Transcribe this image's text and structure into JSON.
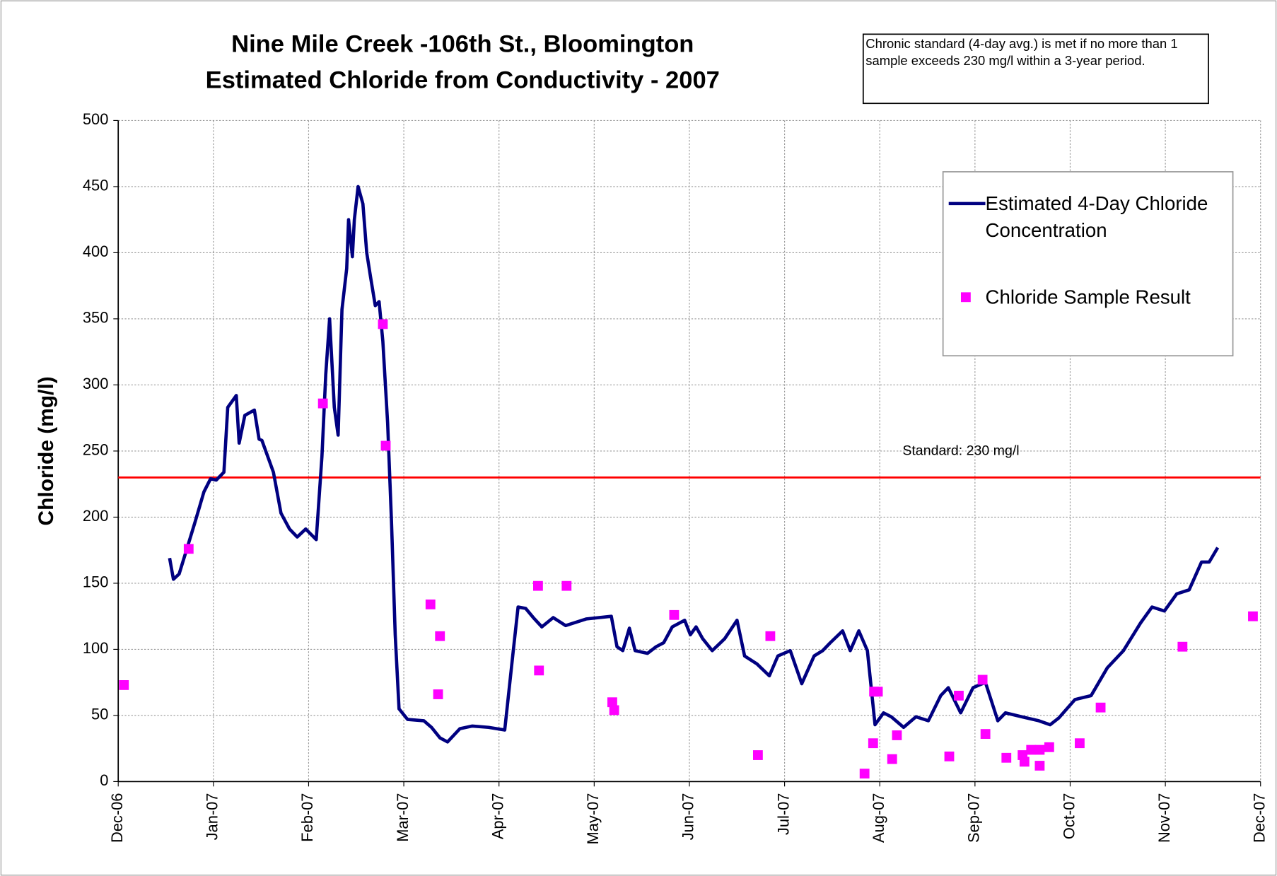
{
  "chart_data": {
    "type": "line",
    "title": "Nine Mile Creek -106th St., Bloomington",
    "subtitle": "Estimated Chloride from Conductivity - 2007",
    "annotation": "Chronic standard (4-day avg.) is met if no more than 1 sample exceeds 230 mg/l within a 3-year period.",
    "y_label": "Chloride (mg/l)",
    "xlim": [
      0,
      12
    ],
    "xticks": [
      {
        "value": 0,
        "label": "Dec-06"
      },
      {
        "value": 1,
        "label": "Jan-07"
      },
      {
        "value": 2,
        "label": "Feb-07"
      },
      {
        "value": 3,
        "label": "Mar-07"
      },
      {
        "value": 4,
        "label": "Apr-07"
      },
      {
        "value": 5,
        "label": "May-07"
      },
      {
        "value": 6,
        "label": "Jun-07"
      },
      {
        "value": 7,
        "label": "Jul-07"
      },
      {
        "value": 8,
        "label": "Aug-07"
      },
      {
        "value": 9,
        "label": "Sep-07"
      },
      {
        "value": 10,
        "label": "Oct-07"
      },
      {
        "value": 11,
        "label": "Nov-07"
      },
      {
        "value": 12,
        "label": "Dec-07"
      }
    ],
    "ylim": [
      0,
      500
    ],
    "yticks": [
      0,
      50,
      100,
      150,
      200,
      250,
      300,
      350,
      400,
      450,
      500
    ],
    "grid": true,
    "reference_line": {
      "value": 230,
      "label": "Standard: 230 mg/l",
      "color": "#ff0000"
    },
    "series": [
      {
        "name": "Estimated 4-Day Chloride Concentration",
        "type": "line",
        "color": "#000080",
        "x": [
          0.54,
          0.58,
          0.64,
          0.73,
          0.81,
          0.9,
          0.97,
          1.03,
          1.11,
          1.15,
          1.24,
          1.27,
          1.33,
          1.43,
          1.48,
          1.51,
          1.63,
          1.71,
          1.8,
          1.88,
          1.97,
          2.08,
          2.14,
          2.18,
          2.22,
          2.27,
          2.31,
          2.35,
          2.4,
          2.42,
          2.46,
          2.48,
          2.52,
          2.57,
          2.61,
          2.65,
          2.7,
          2.74,
          2.78,
          2.83,
          2.87,
          2.91,
          2.95,
          3.04,
          3.21,
          3.29,
          3.38,
          3.46,
          3.59,
          3.72,
          3.89,
          4.06,
          4.15,
          4.2,
          4.28,
          4.36,
          4.45,
          4.57,
          4.7,
          4.92,
          5.18,
          5.24,
          5.3,
          5.37,
          5.43,
          5.56,
          5.65,
          5.73,
          5.82,
          5.95,
          6.01,
          6.07,
          6.14,
          6.24,
          6.37,
          6.5,
          6.58,
          6.71,
          6.84,
          6.93,
          7.06,
          7.18,
          7.31,
          7.4,
          7.48,
          7.61,
          7.69,
          7.78,
          7.87,
          7.95,
          8.04,
          8.12,
          8.25,
          8.38,
          8.51,
          8.64,
          8.72,
          8.85,
          8.98,
          9.11,
          9.24,
          9.32,
          9.49,
          9.67,
          9.79,
          9.88,
          10.05,
          10.22,
          10.39,
          10.56,
          10.74,
          10.86,
          10.99,
          11.12,
          11.25,
          11.38,
          11.46,
          11.55
        ],
        "values": [
          169,
          153,
          157,
          178,
          197,
          219,
          229,
          228,
          234,
          283,
          292,
          256,
          277,
          281,
          259,
          258,
          234,
          203,
          191,
          185,
          191,
          183,
          246,
          308,
          350,
          283,
          262,
          357,
          388,
          425,
          397,
          425,
          450,
          437,
          400,
          382,
          360,
          363,
          333,
          271,
          197,
          111,
          55,
          47,
          46,
          41,
          33,
          30,
          40,
          42,
          41,
          39,
          99,
          132,
          131,
          124,
          117,
          124,
          118,
          123,
          125,
          102,
          99,
          116,
          99,
          97,
          102,
          105,
          117,
          122,
          111,
          117,
          108,
          99,
          108,
          122,
          95,
          89,
          80,
          95,
          99,
          74,
          95,
          99,
          105,
          114,
          99,
          114,
          99,
          43,
          52,
          49,
          41,
          49,
          46,
          65,
          71,
          52,
          71,
          75,
          46,
          52,
          49,
          46,
          43,
          48,
          62,
          65,
          86,
          99,
          120,
          132,
          129,
          142,
          145,
          166,
          166,
          177
        ]
      },
      {
        "name": "Chloride Sample Result",
        "type": "scatter",
        "color": "#ff00ff",
        "x": [
          0.06,
          0.74,
          2.15,
          2.78,
          2.81,
          3.28,
          3.38,
          3.36,
          4.41,
          4.42,
          4.71,
          5.19,
          5.21,
          5.84,
          6.72,
          6.85,
          7.84,
          7.93,
          7.94,
          7.98,
          8.13,
          8.18,
          8.73,
          8.83,
          9.08,
          9.11,
          9.33,
          9.5,
          9.52,
          9.59,
          9.68,
          9.68,
          9.78,
          10.1,
          10.32,
          11.18,
          11.92
        ],
        "values": [
          73,
          176,
          286,
          346,
          254,
          134,
          110,
          66,
          148,
          84,
          148,
          60,
          54,
          126,
          20,
          110,
          6,
          29,
          68,
          68,
          17,
          35,
          19,
          65,
          77,
          36,
          18,
          20,
          15,
          24,
          24,
          12,
          26,
          29,
          56,
          102,
          125
        ]
      }
    ]
  }
}
